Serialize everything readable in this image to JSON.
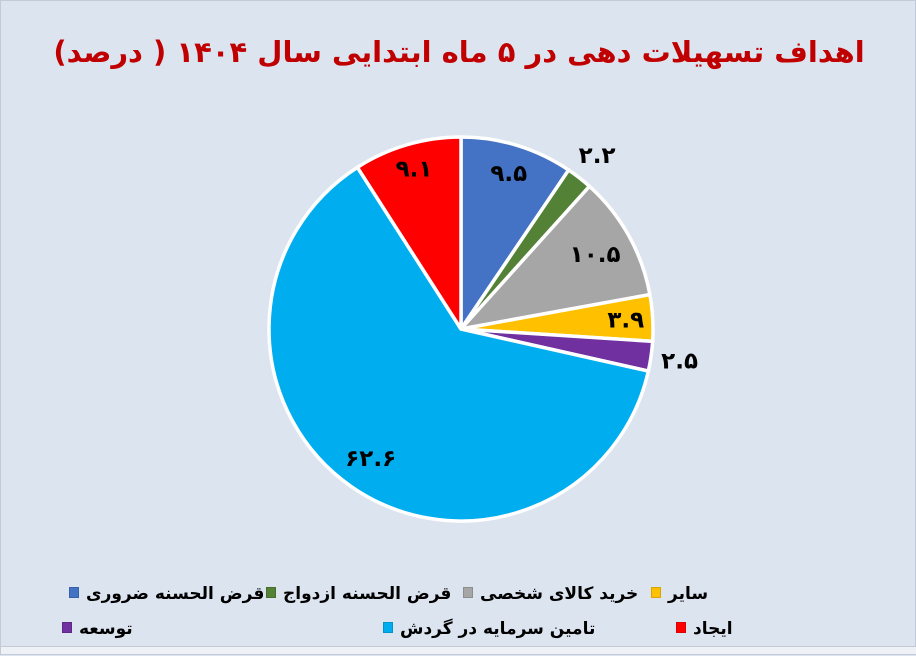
{
  "page": {
    "background_color": "#dce4f0",
    "title_color": "#C00000"
  },
  "title": {
    "text": "اهداف تسهیلات دهی در ۵ ماه ابتدایی سال ۱۴۰۴ ( درصد)"
  },
  "chart_data": {
    "type": "pie",
    "title": "اهداف تسهیلات دهی در ۵ ماه ابتدایی سال ۱۴۰۴ ( درصد)",
    "unit": "درصد",
    "legend_position": "bottom",
    "start_angle_deg": -90,
    "direction": "clockwise",
    "slices": [
      {
        "label": "قرض الحسنه ضروری",
        "value": 9.5,
        "display_value": "۹.۵",
        "color": "#4472C4",
        "label_inside": true,
        "label_r": 0.85
      },
      {
        "label": "قرض الحسنه ازدواج",
        "value": 2.2,
        "display_value": "۲.۲",
        "color": "#538135",
        "label_inside": false,
        "label_r": 1.15
      },
      {
        "label": "خرید کالای شخصی",
        "value": 10.5,
        "display_value": "۱۰.۵",
        "color": "#A6A6A6",
        "label_inside": true,
        "label_r": 0.8
      },
      {
        "label": "سایر",
        "value": 3.9,
        "display_value": "۳.۹",
        "color": "#FFC000",
        "label_inside": true,
        "label_r": 0.86
      },
      {
        "label": "توسعه",
        "value": 2.5,
        "display_value": "۲.۵",
        "color": "#7030A0",
        "label_inside": false,
        "label_r": 1.15
      },
      {
        "label": "تامین سرمایه در گردش",
        "value": 62.6,
        "display_value": "۶۲.۶",
        "color": "#00AEEF",
        "label_inside": true,
        "label_r": 0.82
      },
      {
        "label": "ایجاد",
        "value": 9.1,
        "display_value": "۹.۱",
        "color": "#FF0000",
        "label_inside": true,
        "label_r": 0.87
      }
    ]
  }
}
